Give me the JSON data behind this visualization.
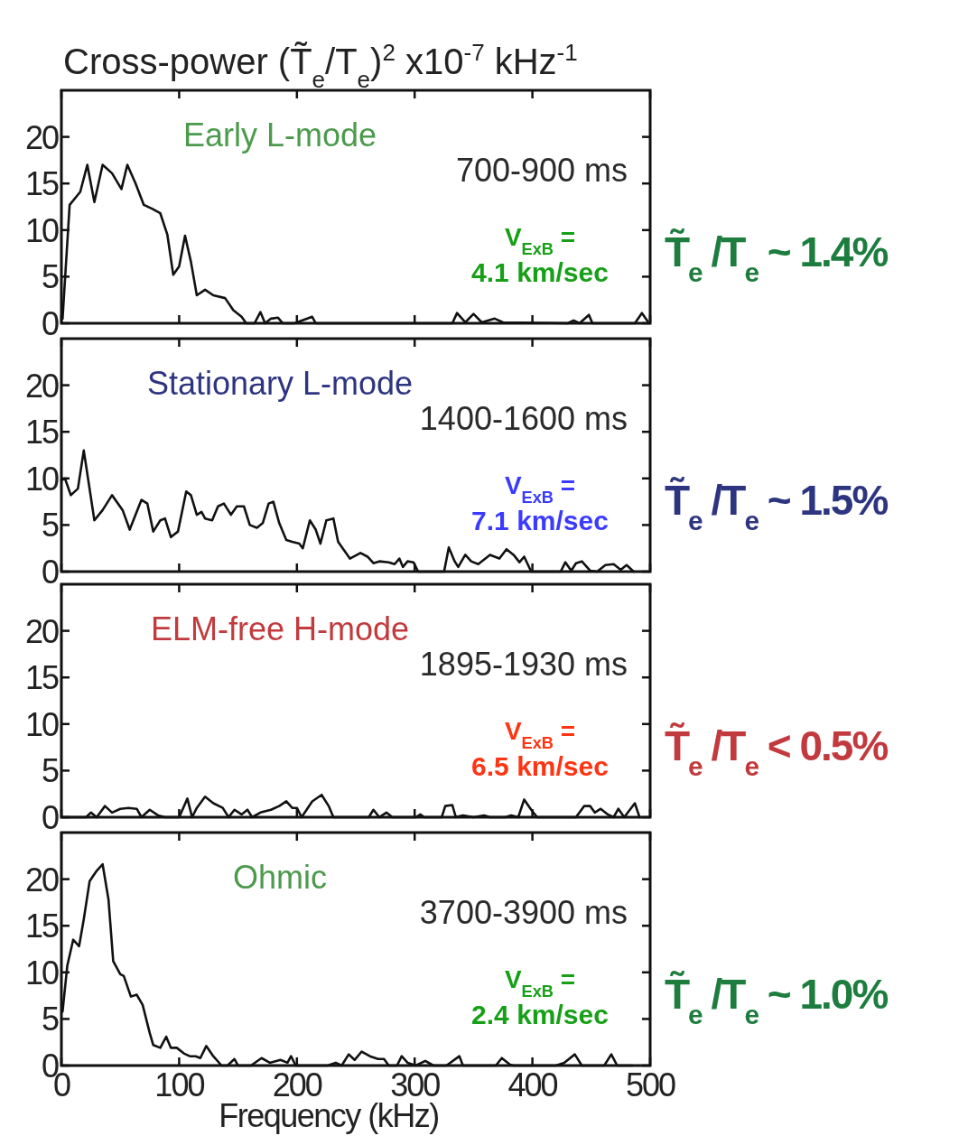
{
  "chart_data": [
    {
      "type": "line",
      "title": "Cross-power (T̃$_{e}$/T$_{e}$)$^{2}$ x10$^{-7}$ kHz$^{-1}$",
      "xlim": [
        0,
        500
      ],
      "xticks": [
        0,
        100,
        200,
        300,
        400,
        500
      ],
      "ylim": [
        0,
        25
      ],
      "yticks": [
        0,
        5,
        10,
        15,
        20
      ],
      "tick_labels": "y",
      "grid": false,
      "annotations": [
        "Early L-mode",
        "700-900 ms",
        "V$_{ExB}$ =",
        "4.1 km/sec",
        "T̃$_{e}$ /T$_{e}$ ~  1.4%"
      ],
      "series": [
        {
          "color": "#111111",
          "x": [
            1,
            7,
            16,
            22,
            28,
            35,
            43,
            51,
            56,
            63,
            70,
            77,
            84,
            90,
            95,
            100,
            105,
            110,
            115,
            122,
            129,
            139,
            146,
            153,
            157,
            164,
            169,
            173,
            178,
            184,
            188,
            198,
            213,
            216,
            307,
            332,
            336,
            343,
            350,
            357,
            368,
            375,
            430,
            435,
            440,
            448,
            451,
            487,
            493,
            498
          ],
          "values": [
            0.5,
            12.7,
            14.1,
            17,
            13,
            17,
            16.1,
            14.4,
            17,
            15,
            12.7,
            12.3,
            11.8,
            9.5,
            5.2,
            6.1,
            9.4,
            6.6,
            3,
            3.6,
            3,
            2.7,
            1.4,
            0.7,
            0,
            0,
            1.2,
            0,
            0.5,
            0.6,
            0,
            0,
            0.7,
            0,
            0,
            0,
            1.1,
            0.1,
            1,
            0.1,
            0.5,
            0.1,
            0,
            0.3,
            0,
            0.9,
            0,
            0,
            1.1,
            0.2
          ]
        }
      ]
    },
    {
      "type": "line",
      "xlim": [
        0,
        500
      ],
      "xticks": [
        0,
        100,
        200,
        300,
        400,
        500
      ],
      "ylim": [
        0,
        25
      ],
      "yticks": [
        0,
        5,
        10,
        15,
        20
      ],
      "tick_labels": "y",
      "grid": false,
      "annotations": [
        "Stationary L-mode",
        "1400-1600 ms",
        "V$_{ExB}$ =",
        "7.1 km/sec",
        "T̃$_{e}$ /T$_{e}$ ~  1.5%"
      ],
      "series": [
        {
          "color": "#111111",
          "x": [
            0,
            3,
            8,
            14,
            19,
            28,
            35,
            43,
            52,
            58,
            68,
            73,
            78,
            84,
            88,
            93,
            99,
            106,
            110,
            115,
            119,
            122,
            128,
            133,
            138,
            144,
            149,
            155,
            160,
            166,
            171,
            176,
            180,
            185,
            191,
            196,
            202,
            205,
            211,
            216,
            220,
            225,
            231,
            235,
            240,
            245,
            254,
            260,
            265,
            270,
            278,
            283,
            287,
            290,
            294,
            299,
            303,
            325,
            329,
            334,
            337,
            343,
            348,
            354,
            364,
            372,
            378,
            384,
            389,
            393,
            399,
            424,
            428,
            433,
            437,
            442,
            449,
            455,
            462,
            469,
            475,
            480,
            486
          ],
          "values": [
            9.8,
            10,
            8.2,
            8.9,
            13,
            5.5,
            6.6,
            8.2,
            6.6,
            4.5,
            7.7,
            7.3,
            4.3,
            5.5,
            5.7,
            3.7,
            4.3,
            8.6,
            8.2,
            6.1,
            6.4,
            5.7,
            5.5,
            7,
            7.3,
            6.1,
            7,
            7,
            5,
            4.7,
            5.2,
            7.3,
            7.5,
            5.2,
            3.4,
            3.2,
            3,
            2.5,
            5.5,
            4.5,
            3,
            5.5,
            5.7,
            3.2,
            2.3,
            1.4,
            2,
            1.6,
            0.9,
            1.1,
            1,
            0.8,
            1.4,
            0.5,
            1.1,
            1,
            0,
            0,
            2.6,
            1.1,
            0.5,
            1.8,
            1.1,
            0.8,
            1.8,
            1.4,
            2.4,
            1.8,
            1,
            1.6,
            0,
            0,
            1,
            0.1,
            0.9,
            1.1,
            0.1,
            0,
            0.7,
            0.8,
            0.2,
            0.7,
            0
          ]
        }
      ]
    },
    {
      "type": "line",
      "xlim": [
        0,
        500
      ],
      "xticks": [
        0,
        100,
        200,
        300,
        400,
        500
      ],
      "ylim": [
        0,
        25
      ],
      "yticks": [
        0,
        5,
        10,
        15,
        20
      ],
      "tick_labels": "y",
      "grid": false,
      "annotations": [
        "ELM-free H-mode",
        "1895-1930 ms",
        "V$_{ExB}$  =",
        "6.5 km/sec",
        "T̃$_{e}$ /T$_{e}$ <  0.5%"
      ],
      "series": [
        {
          "color": "#111111",
          "x": [
            0,
            21,
            25,
            30,
            37,
            43,
            50,
            57,
            64,
            68,
            75,
            82,
            88,
            100,
            107,
            111,
            115,
            122,
            129,
            137,
            142,
            147,
            153,
            158,
            162,
            169,
            178,
            185,
            191,
            196,
            200,
            204,
            213,
            221,
            227,
            231,
            261,
            265,
            270,
            276,
            281,
            301,
            305,
            308,
            323,
            326,
            332,
            335,
            341,
            350,
            359,
            364,
            377,
            382,
            388,
            393,
            399,
            404,
            437,
            444,
            449,
            453,
            458,
            464,
            469,
            473,
            478,
            487,
            491
          ],
          "values": [
            0,
            0,
            0.5,
            0,
            1.2,
            0.5,
            0.9,
            1,
            0.9,
            0,
            0.8,
            0.2,
            0,
            0,
            2,
            0,
            1,
            2.2,
            1.5,
            1,
            0,
            0.8,
            0.3,
            0.8,
            0,
            0.5,
            0.8,
            1.2,
            1.7,
            1,
            1,
            0,
            1.7,
            2.4,
            1.2,
            0,
            0,
            0.8,
            0,
            0.5,
            0,
            0,
            0.3,
            0,
            0,
            1.2,
            1.3,
            0,
            0.2,
            0,
            0.2,
            0,
            0,
            0.2,
            0,
            1.9,
            0.8,
            0,
            0,
            1.2,
            1.2,
            0.5,
            0.9,
            0.3,
            0,
            0.9,
            0,
            1.5,
            0
          ]
        }
      ]
    },
    {
      "type": "line",
      "xlabel": "Frequency (kHz)",
      "xlim": [
        0,
        500
      ],
      "xticks": [
        0,
        100,
        200,
        300,
        400,
        500
      ],
      "ylim": [
        0,
        25
      ],
      "yticks": [
        0,
        5,
        10,
        15,
        20
      ],
      "grid": false,
      "annotations": [
        "Ohmic",
        "3700-3900 ms",
        "V$_{ExB}$ =",
        "2.4 km/sec",
        "T̃$_{e}$ /T$_{e}$ ~  1.0%"
      ],
      "series": [
        {
          "color": "#111111",
          "x": [
            1,
            5,
            10,
            15,
            19,
            24,
            30,
            35,
            40,
            44,
            50,
            53,
            59,
            64,
            69,
            75,
            78,
            84,
            89,
            93,
            98,
            104,
            109,
            114,
            118,
            123,
            129,
            136,
            141,
            147,
            150,
            161,
            170,
            177,
            186,
            192,
            195,
            199,
            226,
            233,
            238,
            244,
            249,
            255,
            262,
            269,
            274,
            278,
            285,
            289,
            294,
            301,
            309,
            316,
            327,
            338,
            341,
            369,
            374,
            381,
            384,
            420,
            427,
            436,
            442,
            461,
            467,
            472,
            485
          ],
          "values": [
            5.8,
            10.7,
            13.5,
            12.8,
            15.7,
            19.8,
            20.9,
            21.6,
            17.8,
            11.2,
            9.8,
            9.6,
            7.4,
            7.6,
            6.5,
            3.5,
            2.2,
            1.9,
            3.1,
            1.9,
            1.9,
            1.3,
            1,
            1,
            0.8,
            2.1,
            1,
            0,
            0,
            0.7,
            0,
            0,
            0.8,
            0.3,
            0.6,
            0.3,
            1,
            0,
            0,
            0.3,
            0,
            1.2,
            0.6,
            1.5,
            1,
            0.7,
            0.7,
            0,
            0,
            1,
            0.3,
            0,
            0.5,
            0,
            0,
            1,
            0,
            0,
            0.8,
            0.1,
            0,
            0,
            0.3,
            1.2,
            0,
            0,
            1.2,
            0,
            0
          ]
        }
      ]
    }
  ]
}
